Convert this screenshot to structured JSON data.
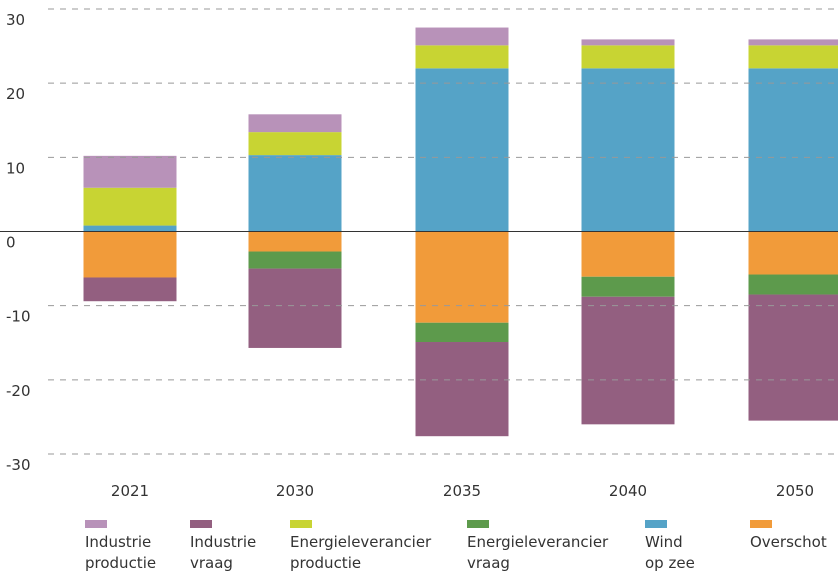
{
  "chart_data": {
    "type": "stacked-bar",
    "categories": [
      "2021",
      "2030",
      "2035",
      "2040",
      "2050"
    ],
    "series": [
      {
        "name": "Industrie productie",
        "color": "#b892b9",
        "values": [
          4.3,
          2.4,
          2.4,
          0.8,
          0.8
        ]
      },
      {
        "name": "Industrie vraag",
        "color": "#935f80",
        "values": [
          -3.2,
          -10.7,
          -12.7,
          -17.2,
          -17.0
        ]
      },
      {
        "name": "Energieleverancier productie",
        "color": "#c8d433",
        "values": [
          5.1,
          3.1,
          3.1,
          3.1,
          3.1
        ]
      },
      {
        "name": "Energieleverancier vraag",
        "color": "#5d9a4c",
        "values": [
          0,
          -2.3,
          -2.6,
          -2.7,
          -2.7
        ]
      },
      {
        "name": "Wind op zee",
        "color": "#55a3c7",
        "values": [
          0.8,
          10.3,
          22.0,
          22.0,
          22.0
        ]
      },
      {
        "name": "Overschot",
        "color": "#f19b3a",
        "values": [
          -6.2,
          -2.7,
          -12.3,
          -6.1,
          -5.8
        ]
      }
    ],
    "ylim": [
      -30,
      30
    ],
    "yticks": [
      30,
      20,
      10,
      0,
      -10,
      -20,
      -30
    ],
    "grid": true
  }
}
